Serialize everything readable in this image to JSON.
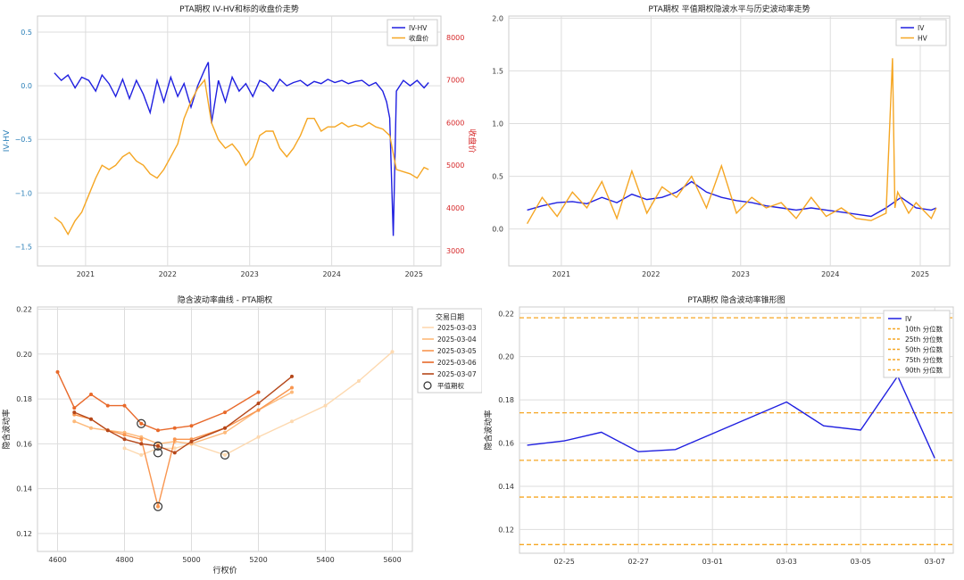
{
  "chart_data": [
    {
      "id": "p1",
      "type": "line",
      "title": "PTA期权 IV-HV和标的收盘价走势",
      "xlabel": "",
      "ylabel": "IV-HV",
      "y2label": "收盘价",
      "xlim": [
        "2020-06-01",
        "2025-05-01"
      ],
      "ylim": [
        -1.68,
        0.65
      ],
      "y2lim": [
        2640,
        8500
      ],
      "x_ticks": [
        "2021-01-01",
        "2022-01-01",
        "2023-01-01",
        "2024-01-01",
        "2025-01-01"
      ],
      "x_tick_labels": [
        "2021",
        "2022",
        "2023",
        "2024",
        "2025"
      ],
      "y_ticks": [
        0.5,
        0.0,
        -0.5,
        -1.0,
        -1.5
      ],
      "y_tick_labels": [
        "0.5",
        "0.0",
        "−0.5",
        "−1.0",
        "−1.5"
      ],
      "y2_ticks": [
        3000,
        4000,
        5000,
        6000,
        7000,
        8000
      ],
      "y2_tick_labels": [
        "3000",
        "4000",
        "5000",
        "6000",
        "7000",
        "8000"
      ],
      "grid": true,
      "legend_position": "top-right",
      "series": [
        {
          "name": "IV-HV",
          "axis": "left",
          "color": "#1f1fe0",
          "x": [
            "2020-08-15",
            "2020-09-15",
            "2020-10-15",
            "2020-11-15",
            "2020-12-15",
            "2021-01-15",
            "2021-02-15",
            "2021-03-15",
            "2021-04-15",
            "2021-05-15",
            "2021-06-15",
            "2021-07-15",
            "2021-08-15",
            "2021-09-15",
            "2021-10-15",
            "2021-11-15",
            "2021-12-15",
            "2022-01-15",
            "2022-02-15",
            "2022-03-15",
            "2022-04-15",
            "2022-05-15",
            "2022-06-15",
            "2022-07-01",
            "2022-07-15",
            "2022-08-15",
            "2022-09-15",
            "2022-10-15",
            "2022-11-15",
            "2022-12-15",
            "2023-01-15",
            "2023-02-15",
            "2023-03-15",
            "2023-04-15",
            "2023-05-15",
            "2023-06-15",
            "2023-07-15",
            "2023-08-15",
            "2023-09-15",
            "2023-10-15",
            "2023-11-15",
            "2023-12-15",
            "2024-01-15",
            "2024-02-15",
            "2024-03-15",
            "2024-04-15",
            "2024-05-15",
            "2024-06-15",
            "2024-07-15",
            "2024-08-15",
            "2024-09-01",
            "2024-09-15",
            "2024-10-01",
            "2024-10-15",
            "2024-11-15",
            "2024-12-15",
            "2025-01-15",
            "2025-02-15",
            "2025-03-07"
          ],
          "y": [
            0.12,
            0.05,
            0.1,
            -0.02,
            0.08,
            0.05,
            -0.05,
            0.1,
            0.02,
            -0.1,
            0.06,
            -0.12,
            0.05,
            -0.08,
            -0.25,
            0.05,
            -0.15,
            0.08,
            -0.1,
            0.02,
            -0.2,
            0.0,
            0.15,
            0.22,
            -0.35,
            0.05,
            -0.15,
            0.08,
            -0.05,
            0.02,
            -0.1,
            0.05,
            0.02,
            -0.05,
            0.06,
            0.0,
            0.03,
            0.05,
            0.0,
            0.04,
            0.02,
            0.06,
            0.03,
            0.05,
            0.02,
            0.04,
            0.05,
            0.0,
            0.03,
            -0.05,
            -0.15,
            -0.3,
            -1.4,
            -0.05,
            0.05,
            0.0,
            0.05,
            -0.02,
            0.03
          ]
        },
        {
          "name": "收盘价",
          "axis": "right",
          "color": "#f5a623",
          "x": [
            "2020-08-15",
            "2020-09-15",
            "2020-10-15",
            "2020-11-15",
            "2020-12-15",
            "2021-01-15",
            "2021-02-15",
            "2021-03-15",
            "2021-04-15",
            "2021-05-15",
            "2021-06-15",
            "2021-07-15",
            "2021-08-15",
            "2021-09-15",
            "2021-10-15",
            "2021-11-15",
            "2021-12-15",
            "2022-01-15",
            "2022-02-15",
            "2022-03-15",
            "2022-04-15",
            "2022-05-15",
            "2022-06-15",
            "2022-07-15",
            "2022-08-15",
            "2022-09-15",
            "2022-10-15",
            "2022-11-15",
            "2022-12-15",
            "2023-01-15",
            "2023-02-15",
            "2023-03-15",
            "2023-04-15",
            "2023-05-15",
            "2023-06-15",
            "2023-07-15",
            "2023-08-15",
            "2023-09-15",
            "2023-10-15",
            "2023-11-15",
            "2023-12-15",
            "2024-01-15",
            "2024-02-15",
            "2024-03-15",
            "2024-04-15",
            "2024-05-15",
            "2024-06-15",
            "2024-07-15",
            "2024-08-15",
            "2024-09-15",
            "2024-10-15",
            "2024-11-15",
            "2024-12-15",
            "2025-01-15",
            "2025-02-15",
            "2025-03-07"
          ],
          "y": [
            3780,
            3650,
            3380,
            3700,
            3900,
            4300,
            4700,
            5000,
            4900,
            5000,
            5200,
            5300,
            5100,
            5000,
            4800,
            4700,
            4900,
            5200,
            5500,
            6100,
            6500,
            6800,
            7000,
            6000,
            5600,
            5400,
            5500,
            5300,
            5000,
            5200,
            5700,
            5800,
            5800,
            5400,
            5200,
            5400,
            5700,
            6100,
            6100,
            5800,
            5900,
            5900,
            6000,
            5900,
            5950,
            5900,
            6000,
            5900,
            5850,
            5700,
            4900,
            4850,
            4800,
            4700,
            4950,
            4900
          ]
        }
      ]
    },
    {
      "id": "p2",
      "type": "line",
      "title": "PTA期权 平值期权隐波水平与历史波动率走势",
      "xlabel": "",
      "ylabel": "",
      "xlim": [
        "2020-06-01",
        "2025-05-01"
      ],
      "ylim": [
        -0.35,
        2.02
      ],
      "x_ticks": [
        "2021-01-01",
        "2022-01-01",
        "2023-01-01",
        "2024-01-01",
        "2025-01-01"
      ],
      "x_tick_labels": [
        "2021",
        "2022",
        "2023",
        "2024",
        "2025"
      ],
      "y_ticks": [
        0.0,
        0.5,
        1.0,
        1.5,
        2.0
      ],
      "y_tick_labels": [
        "0.0",
        "0.5",
        "1.0",
        "1.5",
        "2.0"
      ],
      "grid": true,
      "legend_position": "top-right",
      "series": [
        {
          "name": "IV",
          "color": "#1f1fe0",
          "x": [
            "2020-08-15",
            "2020-10-15",
            "2020-12-15",
            "2021-02-15",
            "2021-04-15",
            "2021-06-15",
            "2021-08-15",
            "2021-10-15",
            "2021-12-15",
            "2022-02-15",
            "2022-04-15",
            "2022-06-15",
            "2022-08-15",
            "2022-10-15",
            "2022-12-15",
            "2023-02-15",
            "2023-04-15",
            "2023-06-15",
            "2023-08-15",
            "2023-10-15",
            "2023-12-15",
            "2024-02-15",
            "2024-04-15",
            "2024-06-15",
            "2024-08-15",
            "2024-10-15",
            "2024-12-15",
            "2025-02-15",
            "2025-03-07"
          ],
          "y": [
            0.18,
            0.22,
            0.25,
            0.26,
            0.24,
            0.3,
            0.25,
            0.33,
            0.28,
            0.3,
            0.35,
            0.45,
            0.35,
            0.3,
            0.27,
            0.25,
            0.22,
            0.2,
            0.18,
            0.2,
            0.18,
            0.16,
            0.14,
            0.12,
            0.2,
            0.3,
            0.2,
            0.18,
            0.2
          ]
        },
        {
          "name": "HV",
          "color": "#f5a623",
          "x": [
            "2020-08-15",
            "2020-10-15",
            "2020-12-15",
            "2021-02-15",
            "2021-04-15",
            "2021-06-15",
            "2021-08-15",
            "2021-10-15",
            "2021-12-15",
            "2022-02-15",
            "2022-04-15",
            "2022-06-15",
            "2022-08-15",
            "2022-10-15",
            "2022-12-15",
            "2023-02-15",
            "2023-04-15",
            "2023-06-15",
            "2023-08-15",
            "2023-10-15",
            "2023-12-15",
            "2024-02-15",
            "2024-04-15",
            "2024-06-15",
            "2024-08-15",
            "2024-09-10",
            "2024-09-20",
            "2024-10-01",
            "2024-11-15",
            "2024-12-15",
            "2025-02-15",
            "2025-03-07"
          ],
          "y": [
            0.05,
            0.3,
            0.12,
            0.35,
            0.2,
            0.45,
            0.1,
            0.55,
            0.15,
            0.4,
            0.3,
            0.5,
            0.2,
            0.6,
            0.15,
            0.3,
            0.2,
            0.25,
            0.1,
            0.3,
            0.12,
            0.2,
            0.1,
            0.08,
            0.15,
            1.62,
            0.2,
            0.35,
            0.15,
            0.25,
            0.1,
            0.2
          ]
        }
      ]
    },
    {
      "id": "p3",
      "type": "line",
      "title": "隐含波动率曲线 - PTA期权",
      "xlabel": "行权价",
      "ylabel": "隐含波动率",
      "xlim": [
        4540,
        5660
      ],
      "ylim": [
        0.112,
        0.221
      ],
      "x_ticks": [
        4600,
        4800,
        5000,
        5200,
        5400,
        5600
      ],
      "x_tick_labels": [
        "4600",
        "4800",
        "5000",
        "5200",
        "5400",
        "5600"
      ],
      "y_ticks": [
        0.12,
        0.14,
        0.16,
        0.18,
        0.2,
        0.22
      ],
      "y_tick_labels": [
        "0.12",
        "0.14",
        "0.16",
        "0.18",
        "0.20",
        "0.22"
      ],
      "grid": true,
      "legend_title": "交易日期",
      "legend_position": "outside-right",
      "atm_label": "平值期权",
      "series": [
        {
          "name": "2025-03-03",
          "color": "#fdd9b0",
          "x": [
            4800,
            4850,
            4900,
            4950,
            5000,
            5100,
            5200,
            5300,
            5400,
            5500,
            5600
          ],
          "y": [
            0.158,
            0.155,
            0.158,
            0.158,
            0.16,
            0.155,
            0.163,
            0.17,
            0.177,
            0.188,
            0.201
          ],
          "atm": [
            5100,
            0.155
          ]
        },
        {
          "name": "2025-03-04",
          "color": "#fdb97a",
          "x": [
            4650,
            4700,
            4750,
            4800,
            4850,
            4900,
            4950,
            5000,
            5100,
            5200,
            5300
          ],
          "y": [
            0.17,
            0.167,
            0.166,
            0.165,
            0.163,
            0.16,
            0.161,
            0.16,
            0.165,
            0.175,
            0.183
          ],
          "atm": [
            4900,
            0.159
          ]
        },
        {
          "name": "2025-03-05",
          "color": "#f99650",
          "x": [
            4650,
            4700,
            4750,
            4800,
            4850,
            4900,
            4950,
            5000,
            5100,
            5200,
            5300
          ],
          "y": [
            0.173,
            0.171,
            0.166,
            0.164,
            0.162,
            0.132,
            0.162,
            0.162,
            0.167,
            0.175,
            0.185
          ],
          "atm": [
            4900,
            0.132
          ]
        },
        {
          "name": "2025-03-06",
          "color": "#e8692a",
          "x": [
            4600,
            4650,
            4700,
            4750,
            4800,
            4850,
            4900,
            4950,
            5000,
            5100,
            5200
          ],
          "y": [
            0.192,
            0.176,
            0.182,
            0.177,
            0.177,
            0.169,
            0.166,
            0.167,
            0.168,
            0.174,
            0.183
          ],
          "atm": [
            4850,
            0.169
          ]
        },
        {
          "name": "2025-03-07",
          "color": "#b5471a",
          "x": [
            4650,
            4700,
            4750,
            4800,
            4850,
            4900,
            4950,
            5000,
            5100,
            5200,
            5300
          ],
          "y": [
            0.174,
            0.171,
            0.166,
            0.162,
            0.16,
            0.159,
            0.156,
            0.161,
            0.167,
            0.178,
            0.19
          ],
          "atm": [
            4900,
            0.156
          ]
        }
      ]
    },
    {
      "id": "p4",
      "type": "line",
      "title": "PTA期权 隐含波动率锥形图",
      "xlabel": "",
      "ylabel": "隐含波动率",
      "xlim": [
        "2025-02-23T19:00",
        "2025-03-07T12:00"
      ],
      "ylim": [
        0.109,
        0.223
      ],
      "x_ticks": [
        "2025-02-25",
        "2025-02-27",
        "2025-03-01",
        "2025-03-03",
        "2025-03-05",
        "2025-03-07"
      ],
      "x_tick_labels": [
        "02-25",
        "02-27",
        "03-01",
        "03-03",
        "03-05",
        "03-07"
      ],
      "y_ticks": [
        0.12,
        0.14,
        0.16,
        0.18,
        0.2,
        0.22
      ],
      "y_tick_labels": [
        "0.12",
        "0.14",
        "0.16",
        "0.18",
        "0.20",
        "0.22"
      ],
      "grid": true,
      "legend_position": "top-right",
      "series": [
        {
          "name": "IV",
          "color": "#1f1fe0",
          "x": [
            "2025-02-24",
            "2025-02-25",
            "2025-02-26",
            "2025-02-27",
            "2025-02-28",
            "2025-03-03",
            "2025-03-04",
            "2025-03-05",
            "2025-03-06",
            "2025-03-07"
          ],
          "y": [
            0.159,
            0.161,
            0.165,
            0.156,
            0.157,
            0.179,
            0.168,
            0.166,
            0.191,
            0.153
          ]
        }
      ],
      "percentiles": [
        {
          "name": "10th 分位数",
          "value": 0.113
        },
        {
          "name": "25th 分位数",
          "value": 0.135
        },
        {
          "name": "50th 分位数",
          "value": 0.152
        },
        {
          "name": "75th 分位数",
          "value": 0.174
        },
        {
          "name": "90th 分位数",
          "value": 0.218
        }
      ],
      "percentile_color": "#f5a623"
    }
  ]
}
